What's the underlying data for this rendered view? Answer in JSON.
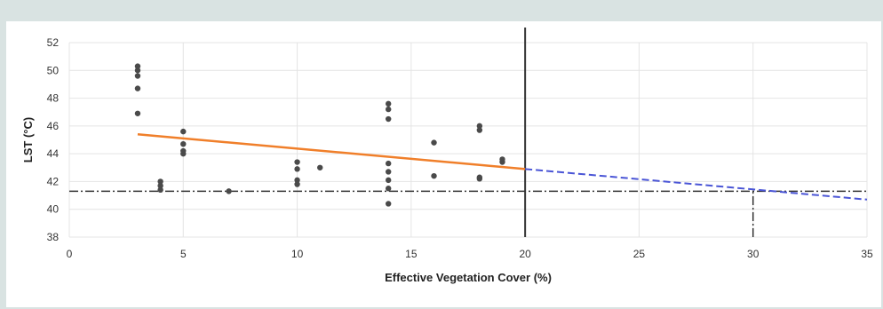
{
  "chart_data": {
    "type": "scatter",
    "title": "",
    "xlabel": "Effective Vegetation Cover (%)",
    "ylabel": "LST (°C)",
    "xlim": [
      0,
      35
    ],
    "ylim": [
      38,
      52
    ],
    "x_ticks": [
      0,
      5,
      10,
      15,
      20,
      25,
      30,
      35
    ],
    "y_ticks": [
      38,
      40,
      42,
      44,
      46,
      48,
      50,
      52
    ],
    "grid": true,
    "legend": "none",
    "colors": {
      "points": "#4a4a4a",
      "trend": "#f07f2a",
      "projection": "#4a55d6",
      "reference": "#333333",
      "grid": "#e4e4e4"
    },
    "series": [
      {
        "type": "scatter",
        "points": [
          [
            3,
            50.3
          ],
          [
            3,
            50.0
          ],
          [
            3,
            49.6
          ],
          [
            3,
            48.7
          ],
          [
            3,
            46.9
          ],
          [
            4,
            42.0
          ],
          [
            4,
            41.7
          ],
          [
            4,
            41.4
          ],
          [
            5,
            45.6
          ],
          [
            5,
            44.7
          ],
          [
            5,
            44.2
          ],
          [
            5,
            44.0
          ],
          [
            7,
            41.3
          ],
          [
            10,
            43.4
          ],
          [
            10,
            42.9
          ],
          [
            10,
            42.1
          ],
          [
            10,
            41.8
          ],
          [
            11,
            43.0
          ],
          [
            14,
            47.6
          ],
          [
            14,
            47.2
          ],
          [
            14,
            46.5
          ],
          [
            14,
            43.3
          ],
          [
            14,
            42.7
          ],
          [
            14,
            42.1
          ],
          [
            14,
            41.5
          ],
          [
            14,
            40.4
          ],
          [
            16,
            44.8
          ],
          [
            16,
            42.4
          ],
          [
            18,
            46.0
          ],
          [
            18,
            45.7
          ],
          [
            18,
            42.3
          ],
          [
            18,
            42.2
          ],
          [
            19,
            43.6
          ],
          [
            19,
            43.4
          ]
        ]
      },
      {
        "type": "line",
        "style": "solid",
        "x": [
          3,
          20
        ],
        "y": [
          45.4,
          42.9
        ]
      },
      {
        "type": "line",
        "style": "dashed",
        "x": [
          20,
          35
        ],
        "y": [
          42.9,
          40.7
        ]
      }
    ],
    "reference_lines": [
      {
        "orientation": "horizontal",
        "style": "dash-dot",
        "value": 41.3,
        "from": 0,
        "to": 35
      },
      {
        "orientation": "vertical",
        "style": "dash-dot",
        "value": 30,
        "from": 38,
        "to": 41.3
      },
      {
        "orientation": "vertical",
        "style": "solid",
        "value": 20,
        "from": 38,
        "to": 53.5
      }
    ]
  }
}
